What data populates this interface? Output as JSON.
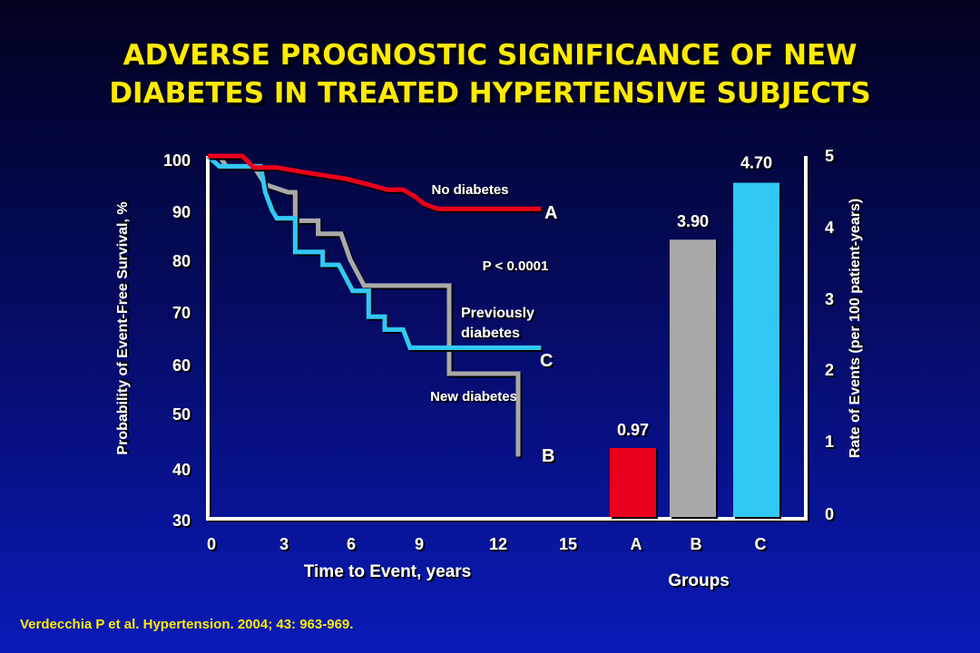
{
  "title": {
    "line1": "ADVERSE PROGNOSTIC SIGNIFICANCE OF NEW",
    "line2": "DIABETES IN TREATED HYPERTENSIVE SUBJECTS"
  },
  "citation": "Verdecchia P et al. Hypertension. 2004; 43: 963-969.",
  "colors": {
    "no_diabetes": "#e8001a",
    "new_diabetes": "#a9a9a9",
    "previous_diabetes": "#33c8f5",
    "title": "#ffea00"
  },
  "chart_data": [
    {
      "type": "line",
      "ylabel": "Probability of Event-Free Survival, %",
      "xlabel": "Time to Event, years",
      "y_ticks": [
        "100",
        "90",
        "80",
        "70",
        "60",
        "50",
        "40",
        "30"
      ],
      "x_ticks": [
        "0",
        "3",
        "6",
        "9",
        "12",
        "15"
      ],
      "xlim": [
        0,
        15
      ],
      "ylim": [
        30,
        100
      ],
      "annotation": "P < 0.0001",
      "series": [
        {
          "name": "No diabetes",
          "letter": "A",
          "color": "#e8001a",
          "points": [
            [
              0,
              100
            ],
            [
              1.5,
              100
            ],
            [
              2,
              97.8
            ],
            [
              3,
              97.8
            ],
            [
              4,
              97
            ],
            [
              6,
              95.6
            ],
            [
              7,
              94.5
            ],
            [
              7.8,
              93.5
            ],
            [
              8.5,
              93.5
            ],
            [
              9,
              92.2
            ],
            [
              9.4,
              90.8
            ],
            [
              10,
              89.8
            ],
            [
              14.5,
              89.8
            ]
          ]
        },
        {
          "name": "New diabetes",
          "letter": "B",
          "color": "#a9a9a9",
          "points": [
            [
              0,
              100
            ],
            [
              0.5,
              100
            ],
            [
              0.8,
              98
            ],
            [
              2,
              98
            ],
            [
              2.5,
              94.5
            ],
            [
              3.5,
              93
            ],
            [
              3.8,
              93
            ],
            [
              3.8,
              87.5
            ],
            [
              4.8,
              87.5
            ],
            [
              4.8,
              85
            ],
            [
              5.8,
              85
            ],
            [
              6.2,
              80
            ],
            [
              6.8,
              75
            ],
            [
              10.5,
              75
            ],
            [
              10.5,
              58
            ],
            [
              13.5,
              58
            ],
            [
              13.5,
              42
            ]
          ]
        },
        {
          "name": "Previously diabetes",
          "letter": "C",
          "color": "#33c8f5",
          "points": [
            [
              0,
              100
            ],
            [
              0.5,
              98
            ],
            [
              2.3,
              98
            ],
            [
              2.5,
              93
            ],
            [
              2.8,
              89.5
            ],
            [
              3,
              88
            ],
            [
              3.8,
              88
            ],
            [
              3.8,
              81.5
            ],
            [
              5,
              81.5
            ],
            [
              5,
              79
            ],
            [
              5.7,
              79
            ],
            [
              6.3,
              74
            ],
            [
              7,
              74
            ],
            [
              7,
              69
            ],
            [
              7.7,
              69
            ],
            [
              7.7,
              66.5
            ],
            [
              8.5,
              66.5
            ],
            [
              8.8,
              63
            ],
            [
              14.5,
              63
            ]
          ]
        }
      ],
      "labels": {
        "no_diabetes": "No diabetes",
        "previous_diabetes_line1": "Previously",
        "previous_diabetes_line2": "diabetes",
        "new_diabetes": "New diabetes"
      }
    },
    {
      "type": "bar",
      "xlabel": "Groups",
      "ylabel": "Rate of Events (per 100 patient-years)",
      "categories": [
        "A",
        "B",
        "C"
      ],
      "values": [
        0.97,
        3.9,
        4.7
      ],
      "value_labels": [
        "0.97",
        "3.90",
        "4.70"
      ],
      "colors": [
        "#e8001a",
        "#a9a9a9",
        "#33c8f5"
      ],
      "ylim": [
        0,
        5
      ],
      "y_ticks": [
        "0",
        "1",
        "2",
        "3",
        "4",
        "5"
      ]
    }
  ]
}
